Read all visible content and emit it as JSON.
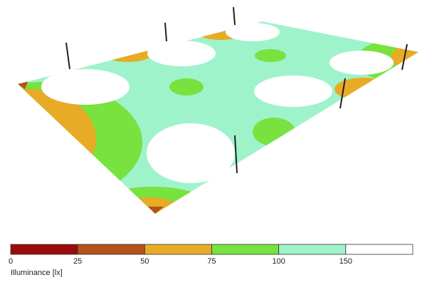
{
  "legend": {
    "title": "Illuminance [lx]",
    "ticks": [
      0,
      25,
      50,
      75,
      100,
      150
    ],
    "colors": [
      "#9b0b0b",
      "#b4521b",
      "#e8ab25",
      "#78e23f",
      "#9ff3cb",
      "#ffffff"
    ]
  }
}
